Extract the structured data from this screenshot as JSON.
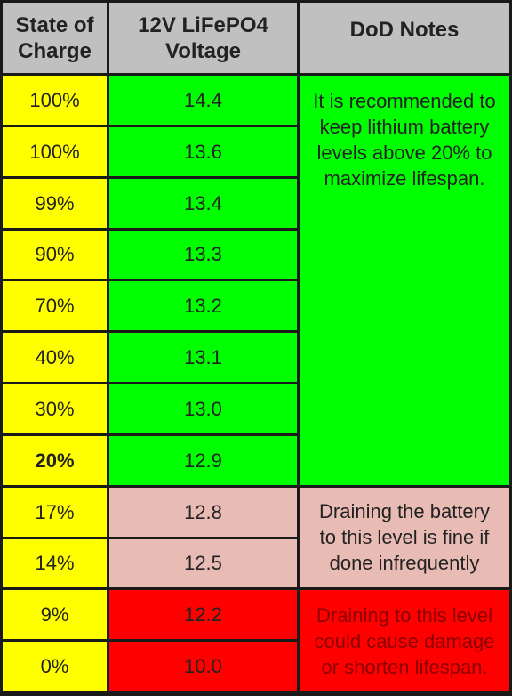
{
  "headers": {
    "soc": "State of Charge",
    "voltage": "12V LiFePO4 Voltage",
    "notes": "DoD Notes"
  },
  "colors": {
    "header": "#c0c0c0",
    "soc_column": "#ffff00",
    "safe": "#00ff00",
    "caution": "#e8bcb4",
    "danger": "#ff0000",
    "danger_text": "#8b0000",
    "grid": "#1a1a1a"
  },
  "chart_data": {
    "type": "table",
    "columns": [
      "State of Charge",
      "12V LiFePO4 Voltage",
      "DoD Notes"
    ],
    "rows": [
      {
        "soc": "100%",
        "voltage": "14.4",
        "zone": "safe"
      },
      {
        "soc": "100%",
        "voltage": "13.6",
        "zone": "safe"
      },
      {
        "soc": "99%",
        "voltage": "13.4",
        "zone": "safe"
      },
      {
        "soc": "90%",
        "voltage": "13.3",
        "zone": "safe"
      },
      {
        "soc": "70%",
        "voltage": "13.2",
        "zone": "safe"
      },
      {
        "soc": "40%",
        "voltage": "13.1",
        "zone": "safe"
      },
      {
        "soc": "30%",
        "voltage": "13.0",
        "zone": "safe"
      },
      {
        "soc": "20%",
        "voltage": "12.9",
        "zone": "safe",
        "bold": true
      },
      {
        "soc": "17%",
        "voltage": "12.8",
        "zone": "caution"
      },
      {
        "soc": "14%",
        "voltage": "12.5",
        "zone": "caution"
      },
      {
        "soc": "9%",
        "voltage": "12.2",
        "zone": "danger"
      },
      {
        "soc": "0%",
        "voltage": "10.0",
        "zone": "danger"
      }
    ],
    "notes": {
      "safe": "It is recommended to keep lithium battery levels above 20% to maximize lifespan.",
      "caution": "Draining the battery to this level is fine if done infrequently",
      "danger": "Draining to this level could cause damage or shorten lifespan."
    }
  }
}
